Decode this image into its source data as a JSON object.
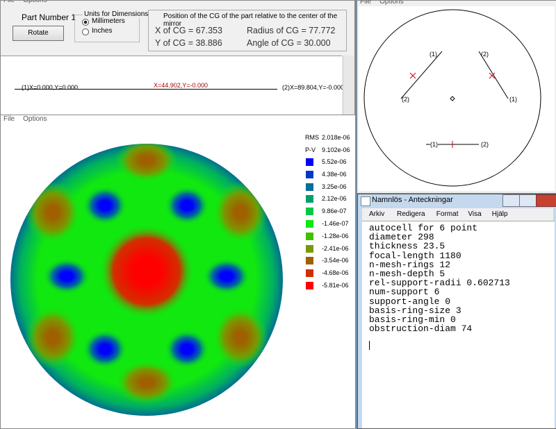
{
  "part_window": {
    "menu": [
      "File",
      "Options"
    ],
    "part_label": "Part Number 1",
    "rotate_button": "Rotate",
    "units": {
      "title": "Units for Dimensions",
      "options": [
        "Millimeters",
        "Inches"
      ],
      "selected": 0
    },
    "cg": {
      "heading": "Position of the CG of the part relative to the center of the mirror",
      "x": "X of CG = 67.353",
      "radius": "Radius of CG = 77.772",
      "y": "Y of CG = 38.886",
      "angle": "Angle of CG = 30.000"
    },
    "profile": {
      "left": "(1)X=0.000,Y=0.000",
      "mid": "X=44.902,Y=-0.000",
      "right": "(2)X=89.804,Y=-0.000"
    }
  },
  "plot_window": {
    "menu": [
      "File",
      "Options"
    ],
    "rms_label": "RMS",
    "rms": "2.018e-06",
    "pv_label": "P-V",
    "pv": "9.102e-06",
    "legend": [
      {
        "label": "5.52e-06",
        "color": "#0000ff"
      },
      {
        "label": "4.38e-06",
        "color": "#0038c8"
      },
      {
        "label": "3.25e-06",
        "color": "#006e98"
      },
      {
        "label": "2.12e-06",
        "color": "#00a070"
      },
      {
        "label": "9.86e-07",
        "color": "#00c848"
      },
      {
        "label": "-1.46e-07",
        "color": "#10e810"
      },
      {
        "label": "-1.28e-06",
        "color": "#40c000"
      },
      {
        "label": "-2.41e-06",
        "color": "#7a9800"
      },
      {
        "label": "-3.54e-06",
        "color": "#a06000"
      },
      {
        "label": "-4.68e-06",
        "color": "#d03000"
      },
      {
        "label": "-5.81e-06",
        "color": "#ff0000"
      }
    ]
  },
  "support_window": {
    "menu": [
      "File",
      "Options"
    ],
    "end_labels": [
      "(1)",
      "(2)",
      "(2)",
      "(1)",
      "(1)",
      "(2)"
    ]
  },
  "notepad": {
    "title": "Namnlös - Anteckningar",
    "menu": [
      "Arkiv",
      "Redigera",
      "Format",
      "Visa",
      "Hjälp"
    ],
    "lines": [
      "autocell for 6 point",
      "diameter 298",
      "thickness 23.5",
      "focal-length 1180",
      "n-mesh-rings 12",
      "n-mesh-depth 5",
      "rel-support-radii 0.602713",
      "num-support 6",
      "support-angle 0",
      "basis-ring-size 3",
      "basis-ring-min 0",
      "obstruction-diam 74"
    ]
  }
}
